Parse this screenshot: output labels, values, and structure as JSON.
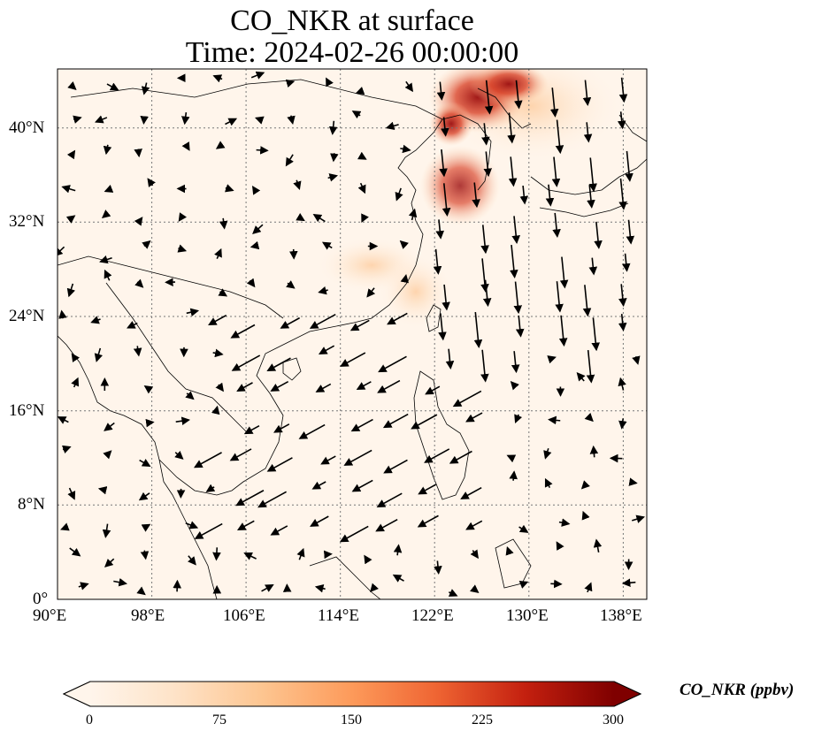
{
  "title": "CO_NKR at surface",
  "subtitle": "Time: 2024-02-26 00:00:00",
  "map": {
    "lon_range": [
      90,
      140
    ],
    "lat_range": [
      0,
      45
    ],
    "lon_ticks": [
      "90°E",
      "98°E",
      "106°E",
      "114°E",
      "122°E",
      "130°E",
      "138°E"
    ],
    "lat_ticks": [
      "0°",
      "8°N",
      "16°N",
      "24°N",
      "32°N",
      "40°N"
    ],
    "lon_tick_values": [
      90,
      98,
      106,
      114,
      122,
      130,
      138
    ],
    "lat_tick_values": [
      0,
      8,
      16,
      24,
      32,
      40
    ],
    "gridlines": "dotted",
    "background_color": "#fff5eb",
    "coastline_color": "#000000"
  },
  "colorbar": {
    "label": "CO_NKR (ppbv)",
    "min": 0,
    "max": 300,
    "tick_labels": [
      "0",
      "75",
      "150",
      "225",
      "300"
    ],
    "tick_values": [
      0,
      75,
      150,
      225,
      300
    ],
    "colormap": "OrRd",
    "colors": [
      "#fff5eb",
      "#fdd9b4",
      "#fdad6b",
      "#f4711f",
      "#d83d12",
      "#a50f15",
      "#7f0000"
    ],
    "extend": "both"
  }
}
